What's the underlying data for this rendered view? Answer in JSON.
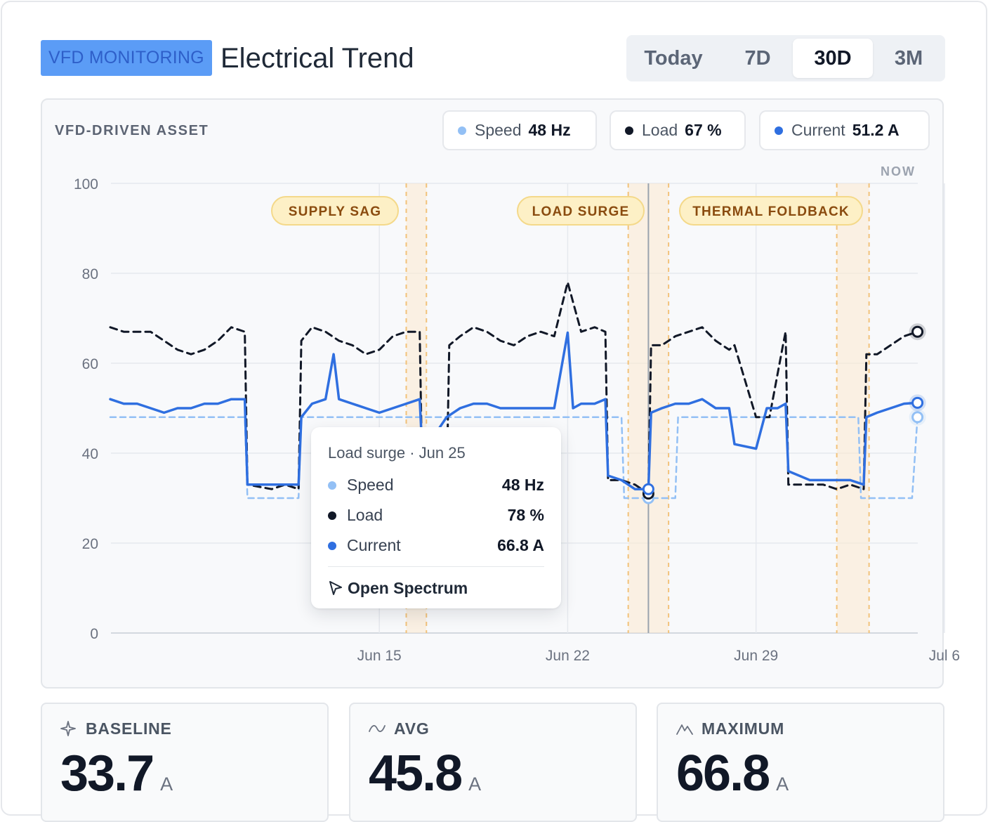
{
  "header": {
    "badge": "VFD MONITORING",
    "title": "Electrical Trend",
    "ranges": [
      "Today",
      "7D",
      "30D",
      "3M"
    ],
    "active_range": "30D"
  },
  "chart": {
    "asset_label": "VFD-DRIVEN ASSET",
    "now_label": "NOW",
    "chips": [
      {
        "label": "Speed",
        "value": "48 Hz",
        "color": "#93c0f5"
      },
      {
        "label": "Load",
        "value": "67 %",
        "color": "#111827"
      },
      {
        "label": "Current",
        "value": "51.2 A",
        "color": "#2f6fe0"
      }
    ]
  },
  "tooltip": {
    "title": "Load surge · Jun 25",
    "rows": [
      {
        "label": "Speed",
        "value": "48 Hz",
        "color": "#93c0f5"
      },
      {
        "label": "Load",
        "value": "78 %",
        "color": "#111827"
      },
      {
        "label": "Current",
        "value": "66.8 A",
        "color": "#2f6fe0"
      }
    ],
    "action": "Open Spectrum"
  },
  "stats": [
    {
      "label": "BASELINE",
      "value": "33.7",
      "unit": "A",
      "icon": "sparkle-icon"
    },
    {
      "label": "AVG",
      "value": "45.8",
      "unit": "A",
      "icon": "wave-icon"
    },
    {
      "label": "MAXIMUM",
      "value": "66.8",
      "unit": "A",
      "icon": "peak-icon"
    }
  ],
  "chart_data": {
    "type": "line",
    "ylim": [
      0,
      100
    ],
    "yticks": [
      0,
      20,
      40,
      60,
      80,
      100
    ],
    "x_start": "2025-06-05",
    "x_end": "2025-07-07",
    "xticks": [
      {
        "date": "2025-06-15",
        "label": "Jun 15"
      },
      {
        "date": "2025-06-22",
        "label": "Jun 22"
      },
      {
        "date": "2025-06-29",
        "label": "Jun 29"
      },
      {
        "date": "2025-07-06",
        "label": "Jul 6"
      }
    ],
    "grid": true,
    "events": [
      {
        "label": "SUPPLY SAG",
        "start": "2025-06-16",
        "end": "2025-06-16.75"
      },
      {
        "label": "LOAD SURGE",
        "start": "2025-06-24.25",
        "end": "2025-06-25.75"
      },
      {
        "label": "THERMAL FOLDBACK",
        "start": "2025-07-02",
        "end": "2025-07-03.2"
      }
    ],
    "cursor": "2025-06-25",
    "series": [
      {
        "name": "Speed",
        "color": "#93c0f5",
        "style": "dashed",
        "points": [
          [
            0,
            48
          ],
          [
            5,
            48
          ],
          [
            5.1,
            30
          ],
          [
            7,
            30
          ],
          [
            7.1,
            48
          ],
          [
            12,
            48
          ],
          [
            12.1,
            48
          ],
          [
            19,
            48
          ],
          [
            19.1,
            30
          ],
          [
            21,
            30
          ],
          [
            21.1,
            48
          ],
          [
            26,
            48
          ],
          [
            26.1,
            48
          ],
          [
            27.8,
            48
          ],
          [
            27.9,
            30
          ],
          [
            29.8,
            30
          ],
          [
            30,
            48
          ]
        ]
      },
      {
        "name": "Load",
        "color": "#111827",
        "style": "dashed",
        "points": [
          [
            0,
            68
          ],
          [
            0.5,
            67
          ],
          [
            1.5,
            67
          ],
          [
            2,
            65
          ],
          [
            2.5,
            63
          ],
          [
            3,
            62
          ],
          [
            3.5,
            63
          ],
          [
            4,
            65
          ],
          [
            4.5,
            68
          ],
          [
            5,
            67
          ],
          [
            5.1,
            33
          ],
          [
            6,
            32
          ],
          [
            6.5,
            33
          ],
          [
            7,
            32
          ],
          [
            7.1,
            65
          ],
          [
            7.5,
            68
          ],
          [
            8,
            67
          ],
          [
            8.5,
            65
          ],
          [
            9,
            64
          ],
          [
            9.5,
            62
          ],
          [
            10,
            63
          ],
          [
            10.5,
            66
          ],
          [
            11,
            67
          ],
          [
            11.5,
            67
          ],
          [
            11.6,
            32
          ],
          [
            12.5,
            32
          ],
          [
            12.6,
            64
          ],
          [
            13,
            66
          ],
          [
            13.5,
            68
          ],
          [
            14,
            67
          ],
          [
            14.5,
            65
          ],
          [
            15,
            64
          ],
          [
            15.5,
            66
          ],
          [
            16,
            67
          ],
          [
            16.5,
            66
          ],
          [
            17,
            78
          ],
          [
            17.5,
            67
          ],
          [
            18,
            68
          ],
          [
            18.4,
            67
          ],
          [
            18.5,
            34
          ],
          [
            19,
            34
          ],
          [
            19.5,
            33
          ],
          [
            20,
            31
          ],
          [
            20.1,
            64
          ],
          [
            20.5,
            64
          ],
          [
            21,
            66
          ],
          [
            21.5,
            67
          ],
          [
            22,
            68
          ],
          [
            22.5,
            65
          ],
          [
            23,
            63
          ],
          [
            23.2,
            64
          ],
          [
            24,
            48
          ],
          [
            24.5,
            48
          ],
          [
            25,
            64
          ],
          [
            25.1,
            67
          ],
          [
            25.2,
            33
          ],
          [
            26,
            33
          ],
          [
            26.5,
            33
          ],
          [
            27,
            32
          ],
          [
            27.5,
            33
          ],
          [
            28,
            32
          ],
          [
            28.1,
            62
          ],
          [
            28.5,
            62
          ],
          [
            29,
            64
          ],
          [
            29.5,
            66
          ],
          [
            30,
            67
          ]
        ]
      },
      {
        "name": "Current",
        "color": "#2f6fe0",
        "style": "solid",
        "points": [
          [
            0,
            52
          ],
          [
            0.5,
            51
          ],
          [
            1,
            51
          ],
          [
            1.5,
            50
          ],
          [
            2,
            49
          ],
          [
            2.5,
            50
          ],
          [
            3,
            50
          ],
          [
            3.5,
            51
          ],
          [
            4,
            51
          ],
          [
            4.5,
            52
          ],
          [
            5,
            52
          ],
          [
            5.1,
            33
          ],
          [
            6,
            33
          ],
          [
            6.5,
            33
          ],
          [
            7,
            33
          ],
          [
            7.1,
            48
          ],
          [
            7.5,
            51
          ],
          [
            8,
            52
          ],
          [
            8.3,
            62
          ],
          [
            8.5,
            52
          ],
          [
            9,
            51
          ],
          [
            9.5,
            50
          ],
          [
            10,
            49
          ],
          [
            10.5,
            50
          ],
          [
            11,
            51
          ],
          [
            11.5,
            52
          ],
          [
            11.6,
            40
          ],
          [
            12.5,
            48
          ],
          [
            13,
            50
          ],
          [
            13.5,
            51
          ],
          [
            14,
            51
          ],
          [
            14.5,
            50
          ],
          [
            15,
            50
          ],
          [
            15.5,
            50
          ],
          [
            16,
            50
          ],
          [
            16.5,
            50
          ],
          [
            17,
            66.8
          ],
          [
            17.2,
            50
          ],
          [
            17.5,
            51
          ],
          [
            18,
            51
          ],
          [
            18.4,
            52
          ],
          [
            18.5,
            35
          ],
          [
            19,
            34
          ],
          [
            19.5,
            32
          ],
          [
            20,
            32
          ],
          [
            20.1,
            49
          ],
          [
            20.5,
            50
          ],
          [
            21,
            51
          ],
          [
            21.5,
            51
          ],
          [
            22,
            52
          ],
          [
            22.5,
            50
          ],
          [
            23,
            50
          ],
          [
            23.2,
            42
          ],
          [
            24,
            41
          ],
          [
            24.4,
            50
          ],
          [
            24.8,
            50
          ],
          [
            25.1,
            51
          ],
          [
            25.2,
            36
          ],
          [
            26,
            34
          ],
          [
            26.5,
            34
          ],
          [
            27,
            34
          ],
          [
            27.5,
            34
          ],
          [
            28,
            33
          ],
          [
            28.1,
            48
          ],
          [
            28.5,
            49
          ],
          [
            29,
            50
          ],
          [
            29.5,
            51
          ],
          [
            30,
            51.2
          ]
        ]
      }
    ]
  }
}
